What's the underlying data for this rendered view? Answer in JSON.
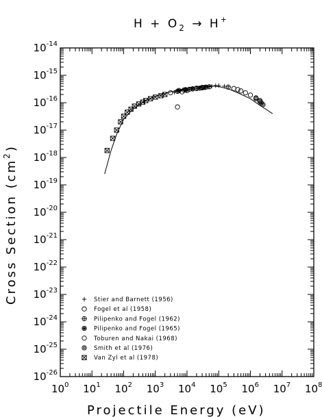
{
  "chart_data": {
    "type": "scatter",
    "title": "H + O₂ → H⁺",
    "title_parts": {
      "lhs": "H  +  O",
      "sub": "2",
      "arrow": "  →  H",
      "sup": "+"
    },
    "xlabel": "Projectile Energy (eV)",
    "ylabel": "Cross Section (cm²)",
    "ylabel_parts": {
      "main": "Cross Section (cm",
      "sup": "2",
      "end": ")"
    },
    "x_scale": "log",
    "y_scale": "log",
    "xlim": [
      1,
      100000000
    ],
    "ylim": [
      1e-26,
      1e-14
    ],
    "x_ticks": [
      {
        "base": "10",
        "exp": "0",
        "value": 1
      },
      {
        "base": "10",
        "exp": "1",
        "value": 10
      },
      {
        "base": "10",
        "exp": "2",
        "value": 100
      },
      {
        "base": "10",
        "exp": "3",
        "value": 1000
      },
      {
        "base": "10",
        "exp": "4",
        "value": 10000
      },
      {
        "base": "10",
        "exp": "5",
        "value": 100000
      },
      {
        "base": "10",
        "exp": "6",
        "value": 1000000
      },
      {
        "base": "10",
        "exp": "7",
        "value": 10000000
      },
      {
        "base": "10",
        "exp": "8",
        "value": 100000000
      }
    ],
    "y_ticks": [
      {
        "base": "10",
        "exp": "-14",
        "value": 1e-14
      },
      {
        "base": "10",
        "exp": "-15",
        "value": 1e-15
      },
      {
        "base": "10",
        "exp": "-16",
        "value": 1e-16
      },
      {
        "base": "10",
        "exp": "-17",
        "value": 1e-17
      },
      {
        "base": "10",
        "exp": "-18",
        "value": 1e-18
      },
      {
        "base": "10",
        "exp": "-19",
        "value": 1e-19
      },
      {
        "base": "10",
        "exp": "-20",
        "value": 1e-20
      },
      {
        "base": "10",
        "exp": "-21",
        "value": 1e-21
      },
      {
        "base": "10",
        "exp": "-22",
        "value": 1e-22
      },
      {
        "base": "10",
        "exp": "-23",
        "value": 1e-23
      },
      {
        "base": "10",
        "exp": "-24",
        "value": 1e-24
      },
      {
        "base": "10",
        "exp": "-25",
        "value": 1e-25
      },
      {
        "base": "10",
        "exp": "-26",
        "value": 1e-26
      }
    ],
    "legend_position": "lower-left",
    "fit_curve": {
      "x": [
        25,
        40,
        60,
        100,
        200,
        500,
        1000,
        3000,
        10000,
        30000,
        60000,
        100000,
        200000,
        400000,
        1000000,
        2000000,
        5000000
      ],
      "y": [
        2.5e-19,
        1.8e-18,
        7e-18,
        2.5e-17,
        6e-17,
        1.2e-16,
        1.7e-16,
        2.5e-16,
        3.4e-16,
        4e-16,
        4.1e-16,
        3.9e-16,
        3.2e-16,
        2.3e-16,
        1.4e-16,
        8e-17,
        4e-17
      ]
    },
    "series": [
      {
        "name": "Stier and Barnett (1956)",
        "marker": "plus",
        "points": [
          [
            4000,
            2.4e-16
          ],
          [
            5000,
            2.6e-16
          ],
          [
            6000,
            2.7e-16
          ],
          [
            8000,
            2.8e-16
          ],
          [
            10000,
            2.9e-16
          ],
          [
            15000,
            3.1e-16
          ],
          [
            20000,
            3.3e-16
          ],
          [
            30000,
            3.5e-16
          ],
          [
            40000,
            3.7e-16
          ],
          [
            50000,
            3.9e-16
          ],
          [
            60000,
            4e-16
          ],
          [
            80000,
            4.2e-16
          ],
          [
            100000,
            4.2e-16
          ],
          [
            150000,
            4e-16
          ],
          [
            200000,
            3.8e-16
          ]
        ]
      },
      {
        "name": "Fogel et al (1958)",
        "marker": "open-circle",
        "points": [
          [
            3000,
            2.3e-16
          ],
          [
            5000,
            7e-17
          ],
          [
            7000,
            2.5e-16
          ],
          [
            10000,
            2.8e-16
          ],
          [
            15000,
            3.2e-16
          ],
          [
            20000,
            3.4e-16
          ],
          [
            30000,
            3.6e-16
          ]
        ]
      },
      {
        "name": "Pilipenko and Fogel (1962)",
        "marker": "circle-plus",
        "points": [
          [
            5000,
            2.6e-16
          ],
          [
            8000,
            2.9e-16
          ],
          [
            12000,
            3.1e-16
          ],
          [
            20000,
            3.3e-16
          ],
          [
            30000,
            3.5e-16
          ],
          [
            40000,
            3.7e-16
          ],
          [
            50000,
            3.8e-16
          ]
        ]
      },
      {
        "name": "Pilipenko and Fogel (1965)",
        "marker": "circle-star",
        "points": [
          [
            5500,
            2.8e-16
          ],
          [
            9000,
            3e-16
          ],
          [
            15000,
            3.2e-16
          ],
          [
            25000,
            3.4e-16
          ],
          [
            35000,
            3.6e-16
          ]
        ]
      },
      {
        "name": "Toburen and Nakai (1968)",
        "marker": "open-circle",
        "points": [
          [
            200000,
            3.7e-16
          ],
          [
            300000,
            3.3e-16
          ],
          [
            400000,
            3e-16
          ],
          [
            500000,
            2.7e-16
          ],
          [
            700000,
            2.3e-16
          ],
          [
            1000000,
            1.9e-16
          ],
          [
            1500000,
            1.5e-16
          ],
          [
            2000000,
            1.2e-16
          ]
        ]
      },
      {
        "name": "Smith et al (1976)",
        "marker": "double-circle",
        "points": [
          [
            1500000,
            1.4e-16
          ],
          [
            2000000,
            1.1e-16
          ],
          [
            2200000,
            1e-16
          ],
          [
            2500000,
            8.5e-17
          ]
        ]
      },
      {
        "name": "Van Zyl et al (1978)",
        "marker": "boxed-x",
        "points": [
          [
            30,
            1.8e-18
          ],
          [
            45,
            5e-18
          ],
          [
            60,
            1e-17
          ],
          [
            80,
            2e-17
          ],
          [
            100,
            3.2e-17
          ],
          [
            130,
            4.5e-17
          ],
          [
            170,
            5.8e-17
          ],
          [
            220,
            7.5e-17
          ],
          [
            300,
            9e-17
          ],
          [
            400,
            1.05e-16
          ],
          [
            500,
            1.2e-16
          ],
          [
            700,
            1.4e-16
          ],
          [
            1000,
            1.6e-16
          ],
          [
            1500,
            1.8e-16
          ],
          [
            2000,
            2e-16
          ]
        ]
      }
    ]
  }
}
